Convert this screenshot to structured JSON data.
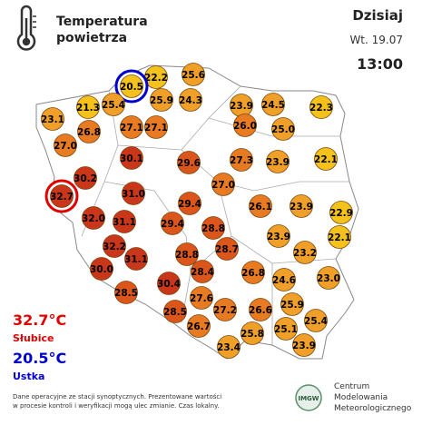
{
  "header": {
    "title": [
      "Temperatura",
      "powietrza"
    ],
    "day": "Dzisiaj",
    "date": "Wt. 19.07",
    "time": "13:00"
  },
  "stations": [
    "22.2",
    "25.6",
    "20.5",
    "25.9",
    "24.3",
    "23.9",
    "24.5",
    "22.3",
    "21.3",
    "25.4",
    "23.1",
    "26.8",
    "27.1",
    "27.1",
    "26.0",
    "25.0",
    "27.0",
    "30.1",
    "29.6",
    "27.3",
    "23.9",
    "22.1",
    "30.2",
    "27.0",
    "32.7",
    "31.0",
    "29.4",
    "26.1",
    "23.9",
    "22.9",
    "32.0",
    "31.1",
    "29.4",
    "28.8",
    "23.9",
    "22.1",
    "32.2",
    "28.7",
    "23.2",
    "31.1",
    "28.8",
    "30.0",
    "28.4",
    "26.8",
    "24.6",
    "23.0",
    "30.4",
    "28.5",
    "27.6",
    "25.9",
    "28.5",
    "27.2",
    "26.6",
    "25.4",
    "26.7",
    "25.8",
    "25.1",
    "23.4",
    "23.9"
  ],
  "extremes": {
    "max": {
      "value": "32.7°C",
      "place": "Słubice"
    },
    "min": {
      "value": "20.5°C",
      "place": "Ustka"
    }
  },
  "footer": {
    "note": [
      "Dane operacyjne ze stacji synoptycznych. Prezentowane wartości",
      "w procesie kontroli i weryfikacji mogą ulec zmianie. Czas lokalny."
    ]
  },
  "logo": {
    "badge": "IMGW",
    "lines": [
      "Centrum",
      "Modelowania",
      "Meteorologicznego"
    ]
  }
}
